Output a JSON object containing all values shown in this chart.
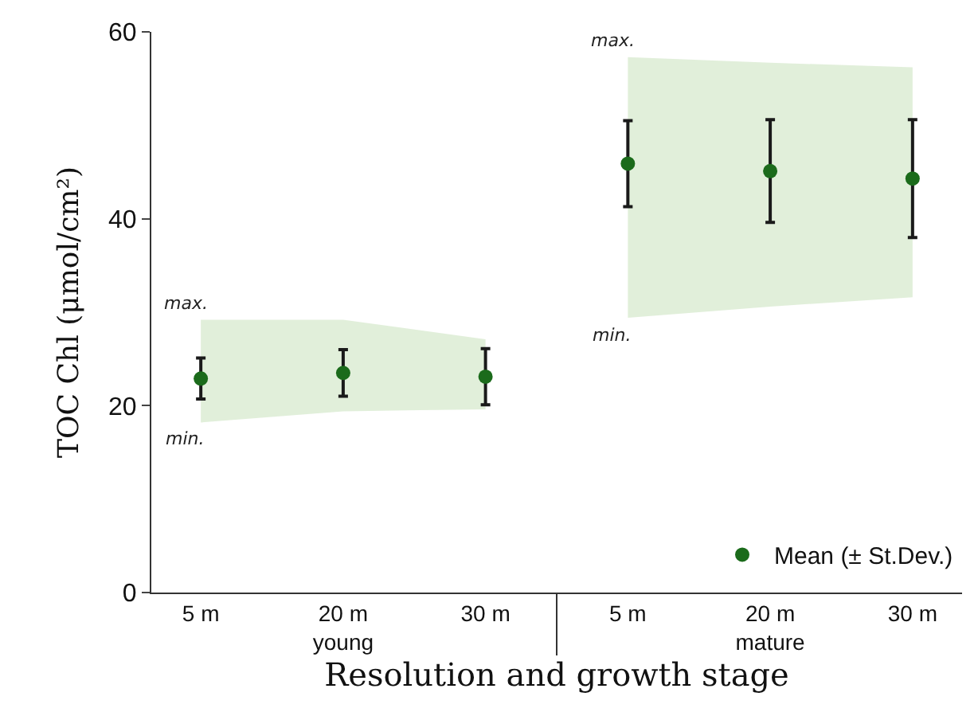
{
  "chart_data": {
    "type": "scatter",
    "xlabel": "Resolution and growth stage",
    "ylabel": "TOC Chl (μmol/cm²)",
    "categories": [
      "5 m",
      "20 m",
      "30 m",
      "5 m",
      "20 m",
      "30 m"
    ],
    "series": [
      {
        "name": "Mean (± St.Dev.)",
        "color": "#1b6b1b",
        "values": [
          22.9,
          23.5,
          23.1,
          45.9,
          45.1,
          44.3
        ],
        "errors": [
          2.2,
          2.5,
          3,
          4.6,
          5.5,
          6.3
        ],
        "lower": [
          18.2,
          19.4,
          19.6,
          29.4,
          30.6,
          31.6
        ],
        "upper": [
          29.2,
          29.2,
          27.1,
          57.3,
          56.7,
          56.2
        ]
      }
    ],
    "annotations": [
      "max.",
      "min.",
      "max.",
      "min.",
      "young",
      "mature"
    ],
    "ylim": [
      0,
      60
    ],
    "yticks": [
      0,
      20,
      40,
      60
    ],
    "grid": false,
    "legend": "bottom right",
    "marker": "circle"
  }
}
